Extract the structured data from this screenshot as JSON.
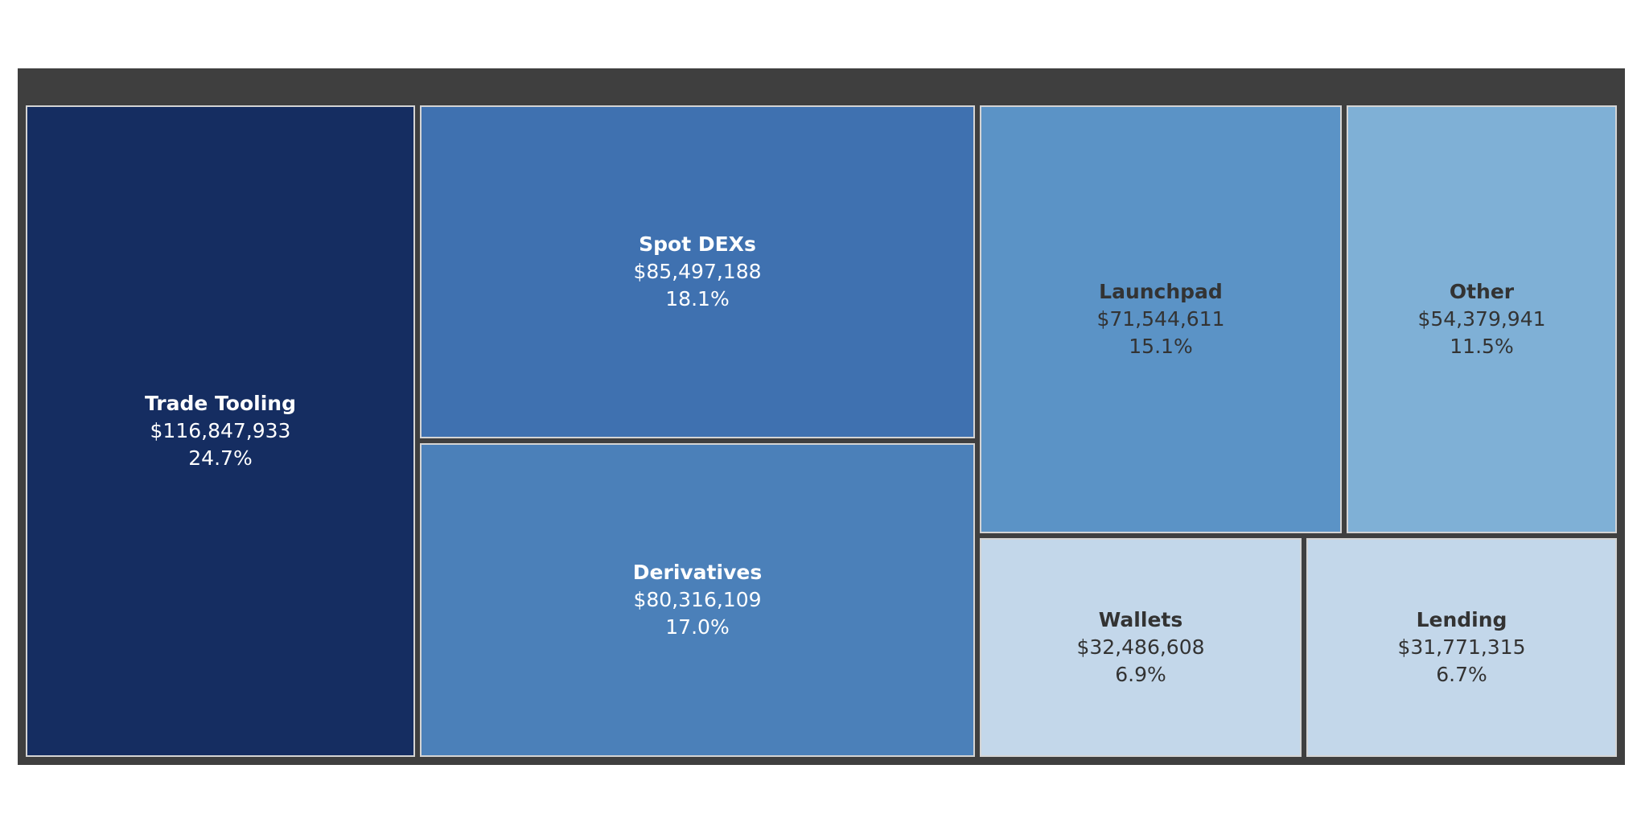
{
  "chart_data": {
    "type": "treemap",
    "title": "",
    "colors": {
      "frame": "#3f3f3f",
      "tile_border": "#d4d4d4",
      "text_light": "#ffffff",
      "text_dark": "#333333"
    },
    "items": [
      {
        "name": "Trade Tooling",
        "value": 116847933,
        "value_label": "$116,847,933",
        "percent_label": "24.7%",
        "color": "#152d61",
        "text": "light"
      },
      {
        "name": "Spot DEXs",
        "value": 85497188,
        "value_label": "$85,497,188",
        "percent_label": "18.1%",
        "color": "#3f71b0",
        "text": "light"
      },
      {
        "name": "Derivatives",
        "value": 80316109,
        "value_label": "$80,316,109",
        "percent_label": "17.0%",
        "color": "#4b80b9",
        "text": "light"
      },
      {
        "name": "Launchpad",
        "value": 71544611,
        "value_label": "$71,544,611",
        "percent_label": "15.1%",
        "color": "#5b93c6",
        "text": "dark"
      },
      {
        "name": "Other",
        "value": 54379941,
        "value_label": "$54,379,941",
        "percent_label": "11.5%",
        "color": "#7fb0d6",
        "text": "dark"
      },
      {
        "name": "Wallets",
        "value": 32486608,
        "value_label": "$32,486,608",
        "percent_label": "6.9%",
        "color": "#c3d7ea",
        "text": "dark"
      },
      {
        "name": "Lending",
        "value": 31771315,
        "value_label": "$31,771,315",
        "percent_label": "6.7%",
        "color": "#c3d7ea",
        "text": "dark"
      }
    ]
  }
}
